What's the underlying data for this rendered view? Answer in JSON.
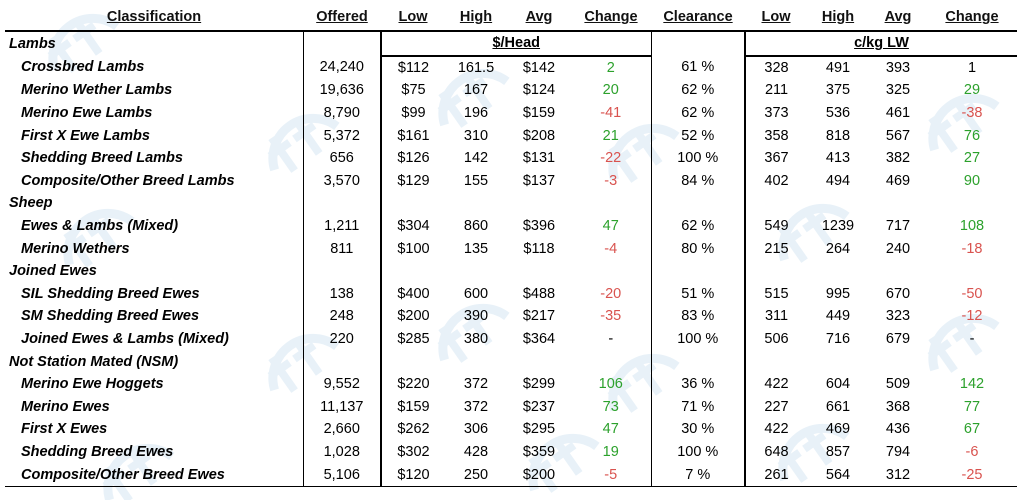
{
  "colors": {
    "positive": "#2ca12c",
    "negative": "#d9534f",
    "watermark": "#d6e6f3"
  },
  "headers": {
    "classification": "Classification",
    "offered": "Offered",
    "low": "Low",
    "high": "High",
    "avg": "Avg",
    "change": "Change",
    "clearance": "Clearance",
    "low2": "Low",
    "high2": "High",
    "avg2": "Avg",
    "change2": "Change"
  },
  "units": {
    "head": "$/Head",
    "lw": "c/kg LW"
  },
  "groups": [
    {
      "category": "Lambs",
      "rows": [
        {
          "name": "Crossbred Lambs",
          "offered": "24,240",
          "low": "$112",
          "high": "161.5",
          "avg": "$142",
          "change": "2",
          "change_dir": "pos",
          "clearance": "61 %",
          "low2": "328",
          "high2": "491",
          "avg2": "393",
          "change2": "1",
          "change2_dir": "neu"
        },
        {
          "name": "Merino Wether Lambs",
          "offered": "19,636",
          "low": "$75",
          "high": "167",
          "avg": "$124",
          "change": "20",
          "change_dir": "pos",
          "clearance": "62 %",
          "low2": "211",
          "high2": "375",
          "avg2": "325",
          "change2": "29",
          "change2_dir": "pos"
        },
        {
          "name": "Merino Ewe Lambs",
          "offered": "8,790",
          "low": "$99",
          "high": "196",
          "avg": "$159",
          "change": "-41",
          "change_dir": "neg",
          "clearance": "62 %",
          "low2": "373",
          "high2": "536",
          "avg2": "461",
          "change2": "-38",
          "change2_dir": "neg"
        },
        {
          "name": "First X Ewe Lambs",
          "offered": "5,372",
          "low": "$161",
          "high": "310",
          "avg": "$208",
          "change": "21",
          "change_dir": "pos",
          "clearance": "52 %",
          "low2": "358",
          "high2": "818",
          "avg2": "567",
          "change2": "76",
          "change2_dir": "pos"
        },
        {
          "name": "Shedding Breed Lambs",
          "offered": "656",
          "low": "$126",
          "high": "142",
          "avg": "$131",
          "change": "-22",
          "change_dir": "neg",
          "clearance": "100 %",
          "low2": "367",
          "high2": "413",
          "avg2": "382",
          "change2": "27",
          "change2_dir": "pos"
        },
        {
          "name": "Composite/Other Breed Lambs",
          "offered": "3,570",
          "low": "$129",
          "high": "155",
          "avg": "$137",
          "change": "-3",
          "change_dir": "neg",
          "clearance": "84 %",
          "low2": "402",
          "high2": "494",
          "avg2": "469",
          "change2": "90",
          "change2_dir": "pos"
        }
      ]
    },
    {
      "category": "Sheep",
      "rows": [
        {
          "name": "Ewes & Lambs (Mixed)",
          "offered": "1,211",
          "low": "$304",
          "high": "860",
          "avg": "$396",
          "change": "47",
          "change_dir": "pos",
          "clearance": "62 %",
          "low2": "549",
          "high2": "1239",
          "avg2": "717",
          "change2": "108",
          "change2_dir": "pos"
        },
        {
          "name": "Merino Wethers",
          "offered": "811",
          "low": "$100",
          "high": "135",
          "avg": "$118",
          "change": "-4",
          "change_dir": "neg",
          "clearance": "80 %",
          "low2": "215",
          "high2": "264",
          "avg2": "240",
          "change2": "-18",
          "change2_dir": "neg"
        }
      ]
    },
    {
      "category": "Joined Ewes",
      "rows": [
        {
          "name": "SIL Shedding Breed Ewes",
          "offered": "138",
          "low": "$400",
          "high": "600",
          "avg": "$488",
          "change": "-20",
          "change_dir": "neg",
          "clearance": "51 %",
          "low2": "515",
          "high2": "995",
          "avg2": "670",
          "change2": "-50",
          "change2_dir": "neg"
        },
        {
          "name": "SM Shedding Breed Ewes",
          "offered": "248",
          "low": "$200",
          "high": "390",
          "avg": "$217",
          "change": "-35",
          "change_dir": "neg",
          "clearance": "83 %",
          "low2": "311",
          "high2": "449",
          "avg2": "323",
          "change2": "-12",
          "change2_dir": "neg"
        },
        {
          "name": "Joined Ewes & Lambs (Mixed)",
          "offered": "220",
          "low": "$285",
          "high": "380",
          "avg": "$364",
          "change": "-",
          "change_dir": "neu",
          "clearance": "100 %",
          "low2": "506",
          "high2": "716",
          "avg2": "679",
          "change2": "-",
          "change2_dir": "neu"
        }
      ]
    },
    {
      "category": "Not Station Mated (NSM)",
      "rows": [
        {
          "name": "Merino Ewe Hoggets",
          "offered": "9,552",
          "low": "$220",
          "high": "372",
          "avg": "$299",
          "change": "106",
          "change_dir": "pos",
          "clearance": "36 %",
          "low2": "422",
          "high2": "604",
          "avg2": "509",
          "change2": "142",
          "change2_dir": "pos"
        },
        {
          "name": "Merino Ewes",
          "offered": "11,137",
          "low": "$159",
          "high": "372",
          "avg": "$237",
          "change": "73",
          "change_dir": "pos",
          "clearance": "71 %",
          "low2": "227",
          "high2": "661",
          "avg2": "368",
          "change2": "77",
          "change2_dir": "pos"
        },
        {
          "name": "First X Ewes",
          "offered": "2,660",
          "low": "$262",
          "high": "306",
          "avg": "$295",
          "change": "47",
          "change_dir": "pos",
          "clearance": "30 %",
          "low2": "422",
          "high2": "469",
          "avg2": "436",
          "change2": "67",
          "change2_dir": "pos"
        },
        {
          "name": "Shedding Breed Ewes",
          "offered": "1,028",
          "low": "$302",
          "high": "428",
          "avg": "$359",
          "change": "19",
          "change_dir": "pos",
          "clearance": "100 %",
          "low2": "648",
          "high2": "857",
          "avg2": "794",
          "change2": "-6",
          "change2_dir": "neg"
        },
        {
          "name": "Composite/Other Breed Ewes",
          "offered": "5,106",
          "low": "$120",
          "high": "250",
          "avg": "$200",
          "change": "-5",
          "change_dir": "neg",
          "clearance": "7 %",
          "low2": "261",
          "high2": "564",
          "avg2": "312",
          "change2": "-25",
          "change2_dir": "neg"
        }
      ]
    }
  ]
}
